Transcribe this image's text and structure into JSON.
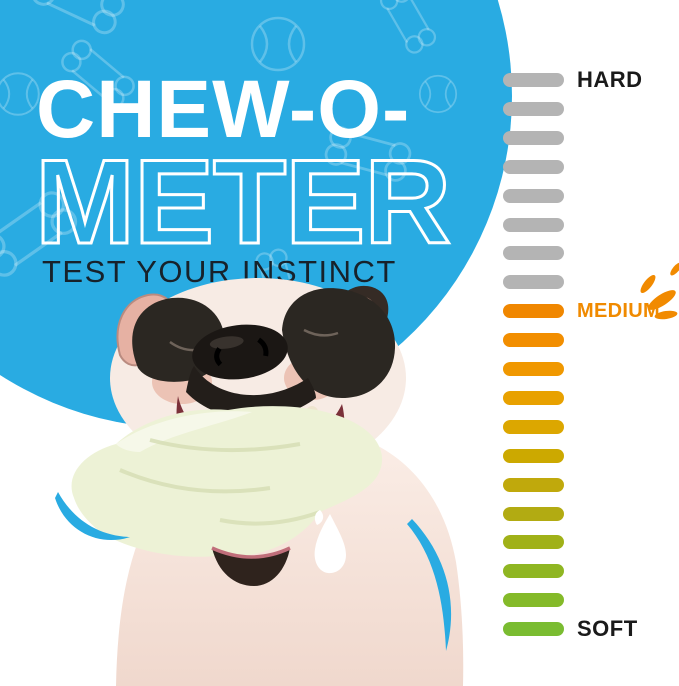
{
  "hero": {
    "title_line1": "CHEW-O-",
    "title_line2": "METER",
    "subtitle": "TEST YOUR INSTINCT"
  },
  "meter": {
    "levels": [
      {
        "id": "hard",
        "label": "HARD",
        "color": "#1a1a1a",
        "bar_index": 0
      },
      {
        "id": "medium",
        "label": "MEDIUM",
        "color": "#f08a00",
        "bar_index": 8
      },
      {
        "id": "soft",
        "label": "SOFT",
        "color": "#1a1a1a",
        "bar_index": 19
      }
    ],
    "bars": [
      "#b4b4b4",
      "#b4b4b4",
      "#b4b4b4",
      "#b4b4b4",
      "#b4b4b4",
      "#b4b4b4",
      "#b4b4b4",
      "#b4b4b4",
      "#f08700",
      "#f28e00",
      "#f09800",
      "#e8a100",
      "#dca700",
      "#cca900",
      "#c0a90c",
      "#b2ab12",
      "#a0b118",
      "#8fb622",
      "#84ba29",
      "#7abc31"
    ]
  },
  "colors": {
    "circle_blue": "#29abe2",
    "burst_orange": "#f18a00",
    "title_white": "#ffffff",
    "subtitle_dark": "#17222b"
  },
  "icons": {
    "burst": "medium-burst-rays",
    "droplet": "drool-drop",
    "swoosh": "curved-blue-accent",
    "pattern": "bones-and-balls-doodles"
  }
}
